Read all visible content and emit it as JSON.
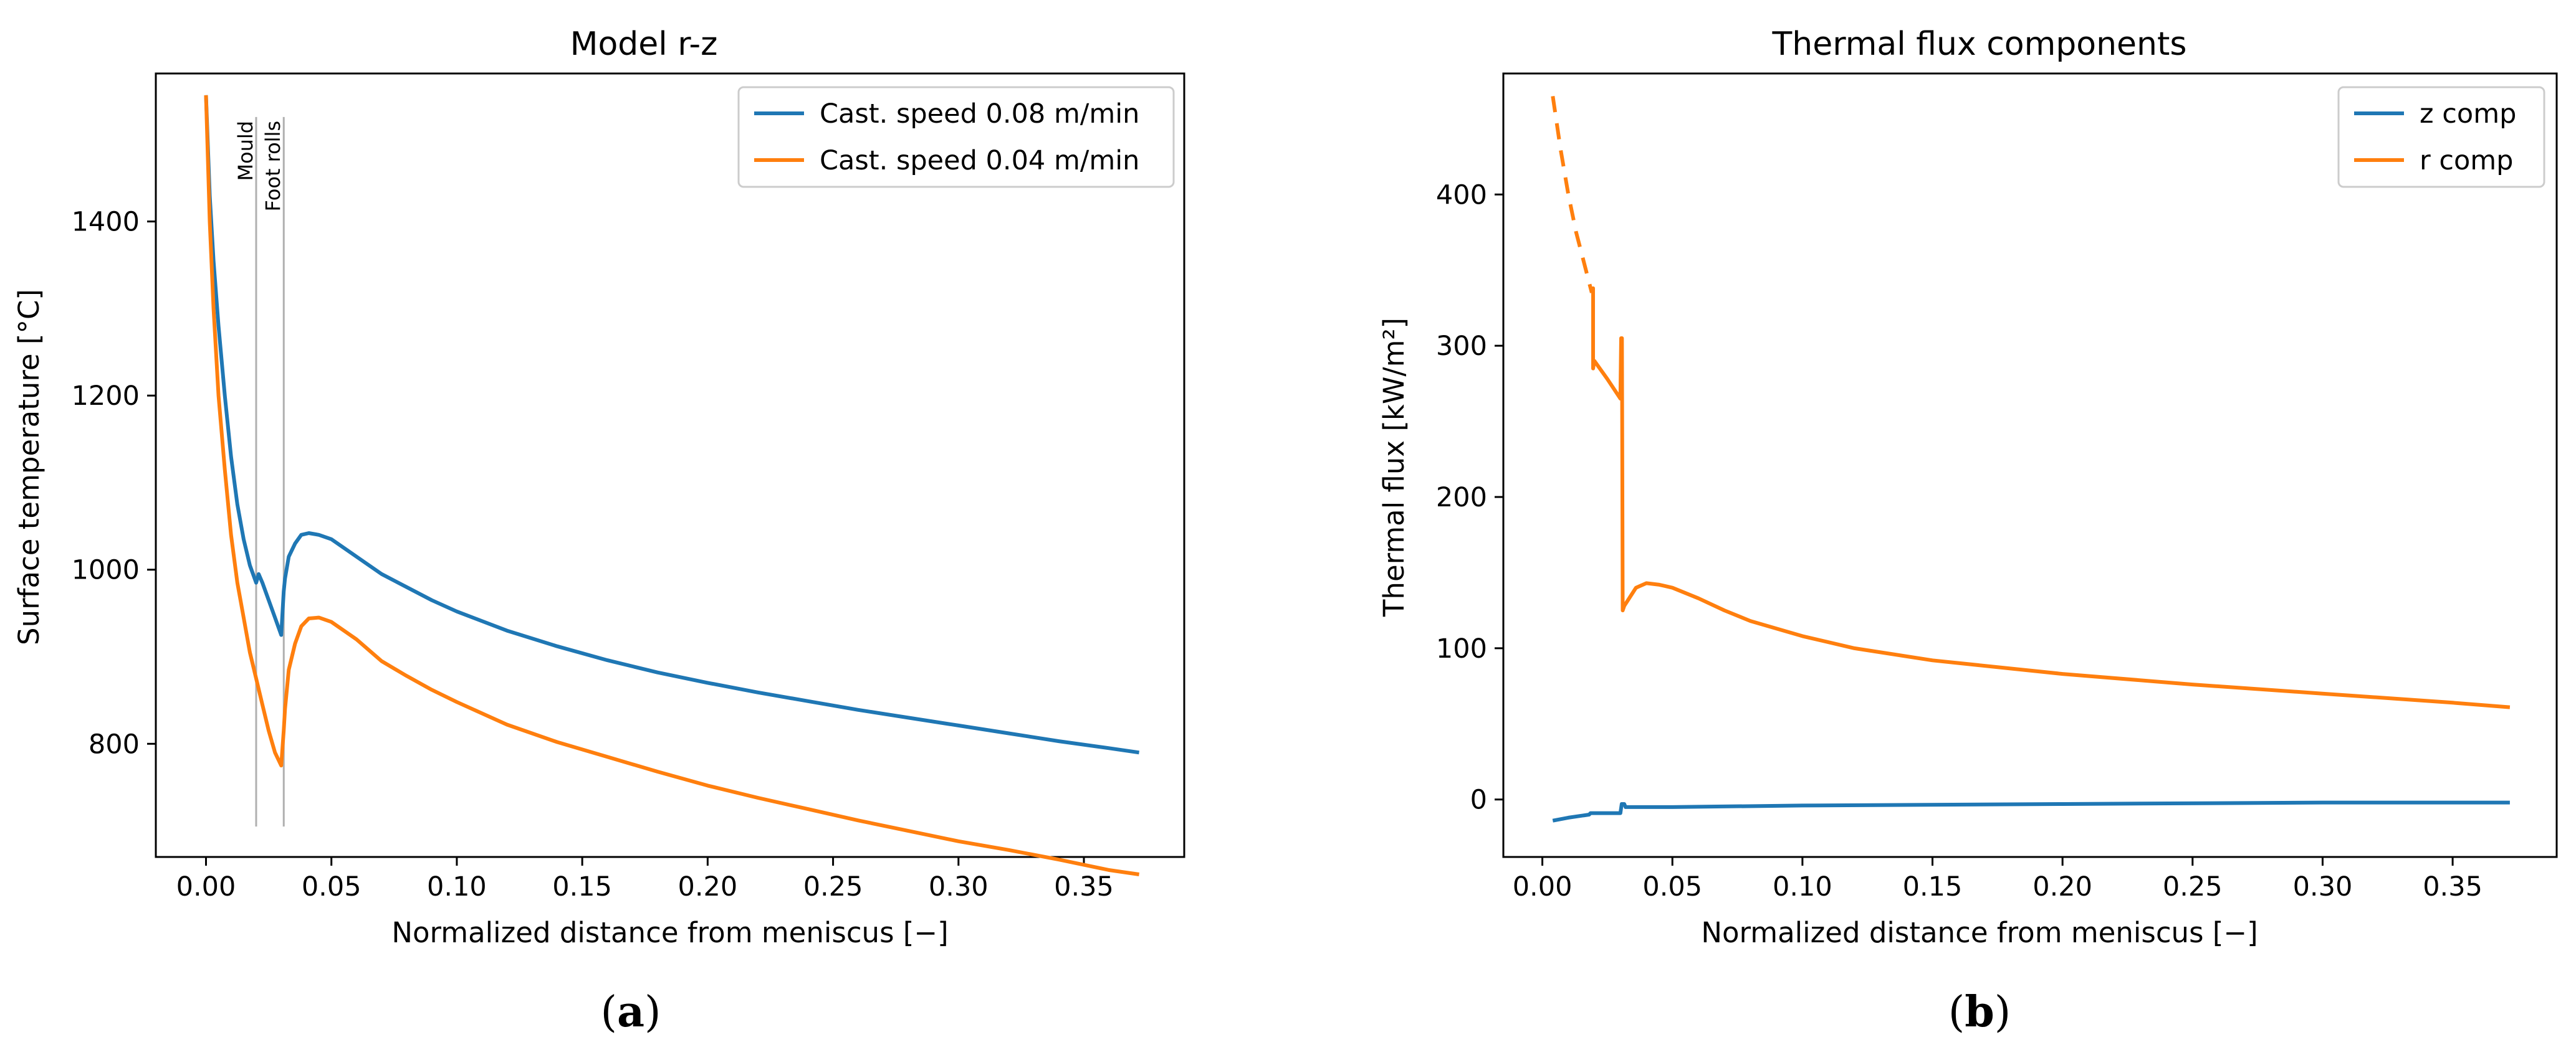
{
  "chart_data": [
    {
      "type": "line",
      "panel_label": "a",
      "title": "Model r-z",
      "xlabel": "Normalized distance from meniscus [−]",
      "ylabel": "Surface temperature [°C]",
      "xlim": [
        -0.02,
        0.39
      ],
      "ylim": [
        670,
        1570
      ],
      "xticks": [
        "0.00",
        "0.05",
        "0.10",
        "0.15",
        "0.20",
        "0.25",
        "0.30",
        "0.35"
      ],
      "xtick_values": [
        0.0,
        0.05,
        0.1,
        0.15,
        0.2,
        0.25,
        0.3,
        0.35
      ],
      "yticks": [
        "800",
        "1000",
        "1200",
        "1400"
      ],
      "ytick_values": [
        800,
        1000,
        1200,
        1400
      ],
      "legend_position": "top-right",
      "annotations": [
        {
          "text": "Mould",
          "x": 0.02,
          "ymin": 705,
          "ymax": 1520
        },
        {
          "text": "Foot rolls",
          "x": 0.031,
          "ymin": 705,
          "ymax": 1520
        }
      ],
      "series": [
        {
          "name": "Cast. speed 0.08 m/min",
          "color": "#1f77b4",
          "x": [
            0.0,
            0.0015,
            0.003,
            0.005,
            0.0075,
            0.01,
            0.0125,
            0.015,
            0.0175,
            0.02,
            0.021,
            0.0225,
            0.025,
            0.0275,
            0.03,
            0.031,
            0.0315,
            0.033,
            0.0355,
            0.038,
            0.041,
            0.045,
            0.05,
            0.06,
            0.07,
            0.08,
            0.09,
            0.1,
            0.12,
            0.14,
            0.16,
            0.18,
            0.2,
            0.22,
            0.24,
            0.26,
            0.28,
            0.3,
            0.32,
            0.34,
            0.36,
            0.372
          ],
          "y": [
            1545,
            1430,
            1355,
            1280,
            1200,
            1130,
            1075,
            1035,
            1005,
            985,
            995,
            985,
            965,
            945,
            925,
            975,
            990,
            1015,
            1030,
            1040,
            1042,
            1040,
            1035,
            1015,
            995,
            980,
            965,
            952,
            930,
            912,
            896,
            882,
            870,
            859,
            849,
            839,
            830,
            821,
            812,
            803,
            795,
            790
          ]
        },
        {
          "name": "Cast. speed 0.04 m/min",
          "color": "#ff7f0e",
          "x": [
            0.0,
            0.0015,
            0.003,
            0.005,
            0.0075,
            0.01,
            0.0125,
            0.015,
            0.0175,
            0.02,
            0.0225,
            0.025,
            0.0275,
            0.03,
            0.031,
            0.0315,
            0.033,
            0.0355,
            0.038,
            0.041,
            0.045,
            0.05,
            0.06,
            0.07,
            0.08,
            0.09,
            0.1,
            0.12,
            0.14,
            0.16,
            0.18,
            0.2,
            0.22,
            0.24,
            0.26,
            0.28,
            0.3,
            0.32,
            0.34,
            0.36,
            0.372
          ],
          "y": [
            1545,
            1400,
            1300,
            1200,
            1115,
            1040,
            985,
            945,
            905,
            875,
            845,
            815,
            790,
            775,
            815,
            840,
            885,
            915,
            935,
            944,
            945,
            940,
            920,
            895,
            878,
            862,
            848,
            822,
            802,
            785,
            768,
            752,
            738,
            725,
            712,
            700,
            688,
            678,
            667,
            655,
            650
          ]
        }
      ]
    },
    {
      "type": "line",
      "panel_label": "b",
      "title": "Thermal flux components",
      "xlabel": "Normalized distance from meniscus [−]",
      "ylabel": "Thermal flux [kW/m²]",
      "xlim": [
        -0.015,
        0.39
      ],
      "ylim": [
        -38,
        480
      ],
      "xticks": [
        "0.00",
        "0.05",
        "0.10",
        "0.15",
        "0.20",
        "0.25",
        "0.30",
        "0.35"
      ],
      "xtick_values": [
        0.0,
        0.05,
        0.1,
        0.15,
        0.2,
        0.25,
        0.3,
        0.35
      ],
      "yticks": [
        "0",
        "100",
        "200",
        "300",
        "400"
      ],
      "ytick_values": [
        0,
        100,
        200,
        300,
        400
      ],
      "legend_position": "top-right",
      "series": [
        {
          "name": "z comp",
          "color": "#1f77b4",
          "x": [
            0.004,
            0.01,
            0.018,
            0.0185,
            0.025,
            0.03,
            0.0305,
            0.0315,
            0.032,
            0.04,
            0.05,
            0.1,
            0.2,
            0.3,
            0.372
          ],
          "y": [
            -14,
            -12,
            -10,
            -9,
            -9,
            -9,
            -3,
            -3,
            -5,
            -5,
            -5,
            -4,
            -3,
            -2,
            -2
          ],
          "segments": [
            {
              "dashed": false,
              "x": [
                0.004,
                0.01,
                0.018,
                0.0185,
                0.025,
                0.03,
                0.0305,
                0.0315,
                0.032,
                0.04,
                0.05,
                0.1,
                0.2,
                0.3,
                0.372
              ],
              "y": [
                -14,
                -12,
                -10,
                -9,
                -9,
                -9,
                -3,
                -3,
                -5,
                -5,
                -5,
                -4,
                -3,
                -2,
                -2
              ]
            }
          ]
        },
        {
          "name": "r comp",
          "color": "#ff7f0e",
          "x": [
            0.004,
            0.007,
            0.01,
            0.013,
            0.016,
            0.019,
            0.0195,
            0.02,
            0.025,
            0.03,
            0.0305,
            0.031,
            0.0315,
            0.033,
            0.036,
            0.04,
            0.045,
            0.05,
            0.06,
            0.07,
            0.08,
            0.1,
            0.12,
            0.15,
            0.2,
            0.25,
            0.3,
            0.35,
            0.372
          ],
          "y": [
            465,
            430,
            400,
            375,
            355,
            335,
            338,
            290,
            278,
            265,
            305,
            300,
            125,
            132,
            140,
            143,
            142,
            140,
            133,
            125,
            118,
            108,
            100,
            92,
            83,
            76,
            70,
            64,
            61
          ],
          "segments": [
            {
              "dashed": true,
              "x": [
                0.004,
                0.007,
                0.01,
                0.013,
                0.016,
                0.019
              ],
              "y": [
                465,
                430,
                400,
                375,
                355,
                335
              ]
            },
            {
              "dashed": false,
              "x": [
                0.019,
                0.0195,
                0.0195,
                0.02,
                0.025,
                0.03,
                0.0303,
                0.0306,
                0.0309,
                0.0315,
                0.033,
                0.036,
                0.04,
                0.045,
                0.05,
                0.06,
                0.07,
                0.08,
                0.1,
                0.12,
                0.15,
                0.2,
                0.25,
                0.3,
                0.35,
                0.372
              ],
              "y": [
                335,
                338,
                285,
                290,
                278,
                265,
                305,
                305,
                125,
                128,
                132,
                140,
                143,
                142,
                140,
                133,
                125,
                118,
                108,
                100,
                92,
                83,
                76,
                70,
                64,
                61
              ]
            }
          ]
        }
      ]
    }
  ]
}
